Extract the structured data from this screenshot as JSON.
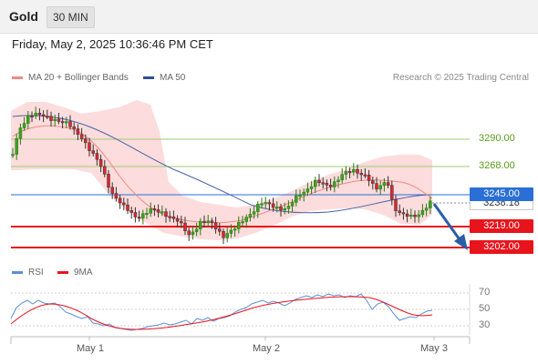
{
  "header": {
    "symbol": "Gold",
    "timeframe": "30 MIN"
  },
  "datetime": "Friday, May 2, 2025 10:36:46 PM CET",
  "legend_main": {
    "ma20": "MA 20 + Bollinger Bands",
    "ma50": "MA 50"
  },
  "credit": "Research © 2025 Trading Central",
  "price_labels": {
    "r2": "3290.00",
    "r1": "3268.00",
    "pivot": "3245.00",
    "current": "3238.18",
    "s1": "3219.00",
    "s2": "3202.00"
  },
  "legend_rsi": {
    "rsi": "RSI",
    "ma": "9MA"
  },
  "rsi_axis": [
    "70",
    "50",
    "30"
  ],
  "x_axis": [
    "May 1",
    "May 2",
    "May 3"
  ],
  "colors": {
    "resistance": "#7cba3f",
    "pivot": "#2a6fd6",
    "support": "#e8141c",
    "ma20": "#f08a85",
    "ma50": "#4a63a8",
    "bollinger_fill": "#fcdcdc",
    "candle_up": "#3f9f23",
    "candle_down": "#e0262d",
    "rsi_line": "#5b8fd8",
    "rsi_ma": "#e8141c",
    "arrow": "#2a5ea8"
  }
}
